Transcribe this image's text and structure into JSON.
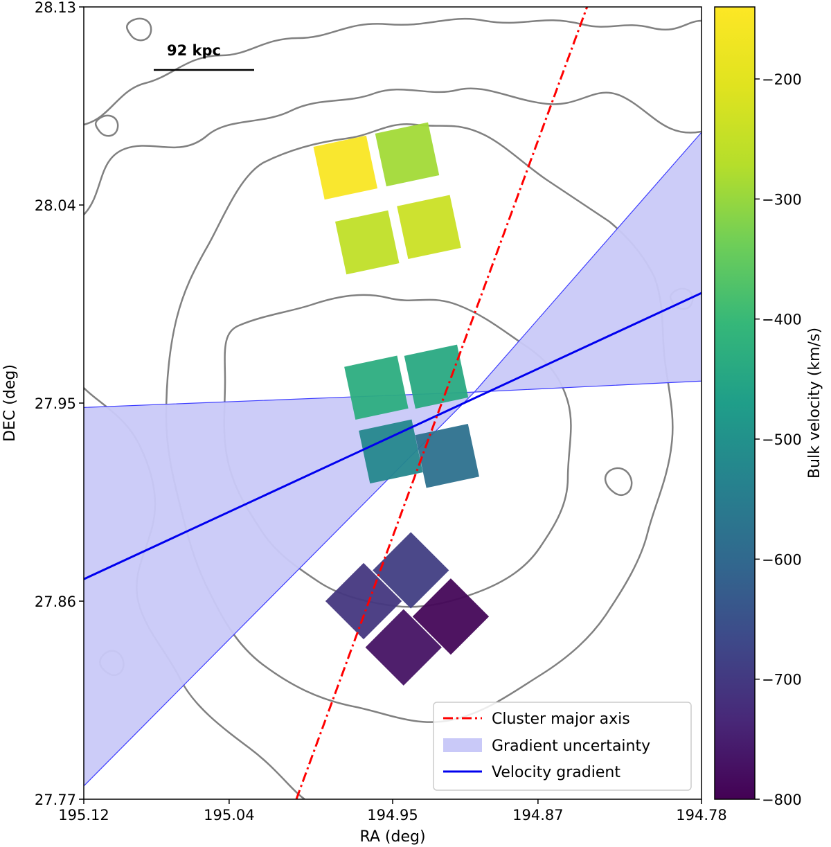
{
  "chart_data": {
    "type": "scatter",
    "xlabel": "RA (deg)",
    "ylabel": "DEC (deg)",
    "xlim": [
      195.12,
      194.78
    ],
    "ylim": [
      27.77,
      28.13
    ],
    "x_ticks": [
      "195.12",
      "195.04",
      "194.95",
      "194.87",
      "194.78"
    ],
    "x_tick_values": [
      195.12,
      195.04,
      194.95,
      194.87,
      194.78
    ],
    "y_ticks": [
      "27.77",
      "27.86",
      "27.95",
      "28.04",
      "28.13"
    ],
    "y_tick_values": [
      27.77,
      27.86,
      27.95,
      28.04,
      28.13
    ],
    "scale_bar": {
      "label": "92 kpc"
    },
    "colorbar": {
      "label": "Bulk velocity (km/s)",
      "range": [
        -800,
        -140
      ],
      "ticks": [
        "−200",
        "−300",
        "−400",
        "−500",
        "−600",
        "−700",
        "−800"
      ],
      "tick_values": [
        -200,
        -300,
        -400,
        -500,
        -600,
        -700,
        -800
      ],
      "colormap": "viridis"
    },
    "legend": {
      "placement": "lower-right",
      "entries": [
        {
          "label": "Cluster major axis",
          "style": "dashdot",
          "color": "#ff0000"
        },
        {
          "label": "Gradient uncertainty",
          "style": "fill",
          "color": "#c9c9f8"
        },
        {
          "label": "Velocity gradient",
          "style": "solid",
          "color": "#0000ee"
        }
      ]
    },
    "lines": {
      "major_axis": {
        "points": [
          [
            195.003,
            27.77
          ],
          [
            194.843,
            28.13
          ]
        ],
        "color": "#ff0000"
      },
      "velocity_gradient": {
        "points": [
          [
            195.12,
            27.87
          ],
          [
            194.78,
            28.0
          ]
        ],
        "color": "#0000ee"
      },
      "uncertainty_wedge": {
        "pivot": [
          194.905,
          27.955
        ],
        "upper_left": [
          195.12,
          27.948
        ],
        "upper_right": [
          194.78,
          27.96
        ],
        "lower_left": [
          195.12,
          27.776
        ],
        "lower_right": [
          194.78,
          28.073
        ],
        "color": "#c9c9f8"
      }
    },
    "regions": [
      {
        "name": "north",
        "cells": [
          {
            "center": [
              194.976,
              28.057
            ],
            "velocity": -150
          },
          {
            "center": [
              194.942,
              28.063
            ],
            "velocity": -290
          },
          {
            "center": [
              194.964,
              28.023
            ],
            "velocity": -255
          },
          {
            "center": [
              194.93,
              28.03
            ],
            "velocity": -240
          }
        ]
      },
      {
        "name": "central",
        "cells": [
          {
            "center": [
              194.959,
              27.957
            ],
            "velocity": -430
          },
          {
            "center": [
              194.926,
              27.962
            ],
            "velocity": -440
          },
          {
            "center": [
              194.951,
              27.928
            ],
            "velocity": -525
          },
          {
            "center": [
              194.92,
              27.926
            ],
            "velocity": -580
          }
        ]
      },
      {
        "name": "south",
        "cells": [
          {
            "center": [
              194.966,
              27.86
            ],
            "velocity": -705
          },
          {
            "center": [
              194.94,
              27.874
            ],
            "velocity": -690
          },
          {
            "center": [
              194.944,
              27.839
            ],
            "velocity": -770
          },
          {
            "center": [
              194.918,
              27.853
            ],
            "velocity": -790
          }
        ]
      }
    ]
  }
}
